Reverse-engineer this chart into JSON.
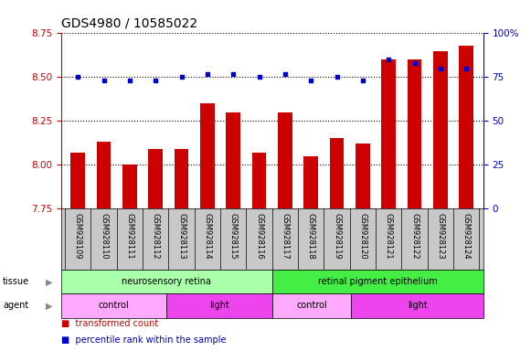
{
  "title": "GDS4980 / 10585022",
  "samples": [
    "GSM928109",
    "GSM928110",
    "GSM928111",
    "GSM928112",
    "GSM928113",
    "GSM928114",
    "GSM928115",
    "GSM928116",
    "GSM928117",
    "GSM928118",
    "GSM928119",
    "GSM928120",
    "GSM928121",
    "GSM928122",
    "GSM928123",
    "GSM928124"
  ],
  "bar_values": [
    8.07,
    8.13,
    8.0,
    8.09,
    8.09,
    8.35,
    8.3,
    8.07,
    8.3,
    8.05,
    8.15,
    8.12,
    8.6,
    8.6,
    8.65,
    8.68
  ],
  "percentile_values": [
    75,
    73,
    73,
    73,
    75,
    77,
    77,
    75,
    77,
    73,
    75,
    73,
    85,
    83,
    80,
    80
  ],
  "ylim_left": [
    7.75,
    8.75
  ],
  "ylim_right": [
    0,
    100
  ],
  "yticks_left": [
    7.75,
    8.0,
    8.25,
    8.5,
    8.75
  ],
  "yticks_right": [
    0,
    25,
    50,
    75,
    100
  ],
  "bar_color": "#cc0000",
  "percentile_color": "#0000cc",
  "bg_color": "#ffffff",
  "tissue_groups": [
    {
      "label": "neurosensory retina",
      "start": 0,
      "end": 8,
      "color": "#aaffaa"
    },
    {
      "label": "retinal pigment epithelium",
      "start": 8,
      "end": 16,
      "color": "#44ee44"
    }
  ],
  "agent_groups": [
    {
      "label": "control",
      "start": 0,
      "end": 4,
      "color": "#ffaaff"
    },
    {
      "label": "light",
      "start": 4,
      "end": 8,
      "color": "#ee44ee"
    },
    {
      "label": "control",
      "start": 8,
      "end": 11,
      "color": "#ffaaff"
    },
    {
      "label": "light",
      "start": 11,
      "end": 16,
      "color": "#ee44ee"
    }
  ],
  "left_axis_color": "#cc0000",
  "right_axis_color": "#0000cc",
  "title_fontsize": 10,
  "tick_fontsize": 7.5,
  "sample_fontsize": 6,
  "row_fontsize": 7,
  "legend_fontsize": 7,
  "grid_color": "#000000",
  "sample_bg": "#c8c8c8",
  "left_label_color": "#555555"
}
